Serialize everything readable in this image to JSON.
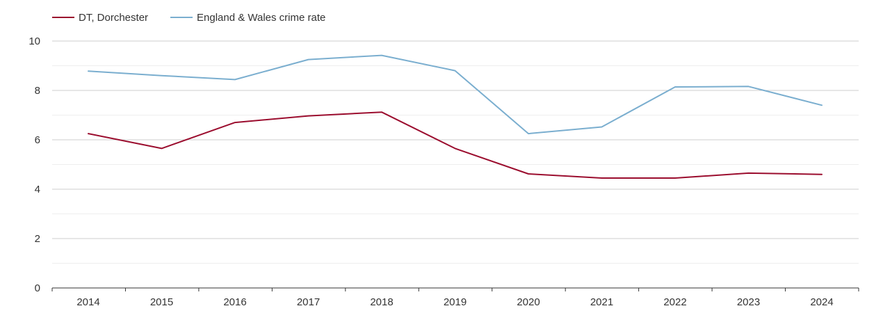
{
  "chart_data": {
    "type": "line",
    "title": "",
    "xlabel": "",
    "ylabel": "",
    "x": [
      "2014",
      "2015",
      "2016",
      "2017",
      "2018",
      "2019",
      "2020",
      "2021",
      "2022",
      "2023",
      "2024"
    ],
    "ylim": [
      0,
      10
    ],
    "y_ticks": [
      0,
      2,
      4,
      6,
      8,
      10
    ],
    "y_minor_ticks": [
      1,
      3,
      5,
      7,
      9
    ],
    "grid": true,
    "legend_position": "top-left",
    "series": [
      {
        "name": "DT, Dorchester",
        "color": "#9b0d2e",
        "values": [
          6.25,
          5.65,
          6.7,
          6.97,
          7.12,
          5.65,
          4.62,
          4.45,
          4.45,
          4.65,
          4.6
        ]
      },
      {
        "name": "England & Wales crime rate",
        "color": "#7aaecf",
        "values": [
          8.78,
          8.6,
          8.44,
          9.25,
          9.42,
          8.8,
          6.25,
          6.52,
          8.14,
          8.16,
          7.4
        ]
      }
    ]
  }
}
